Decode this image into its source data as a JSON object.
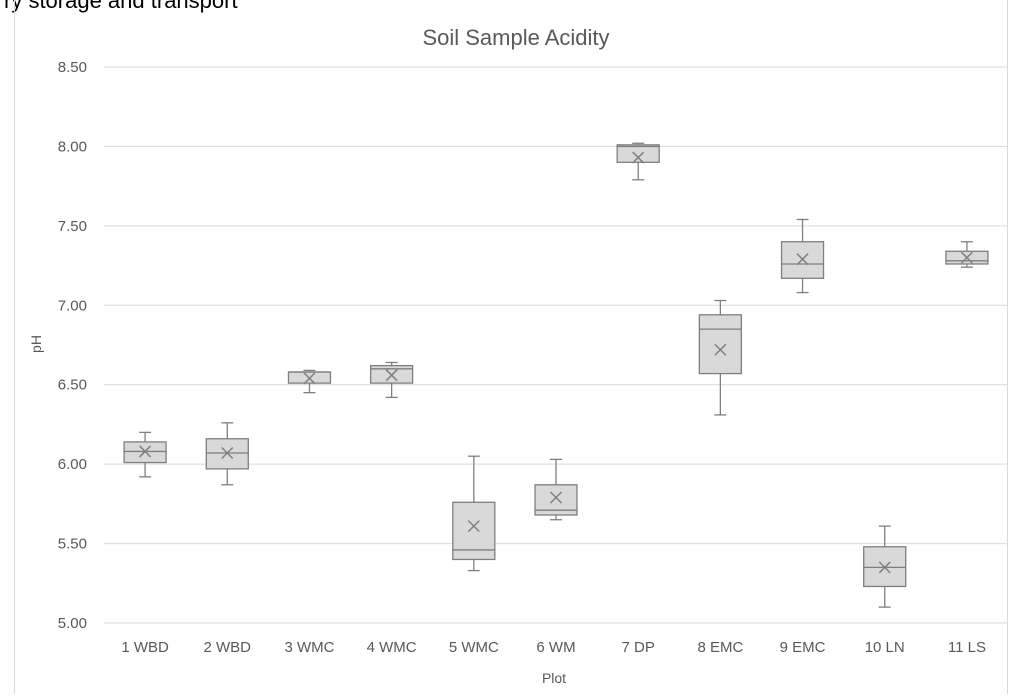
{
  "header_text": "ry storage and transport",
  "chart_data": {
    "type": "box",
    "title": "Soil Sample Acidity",
    "xlabel": "Plot",
    "ylabel": "pH",
    "ylim": [
      5.0,
      8.5
    ],
    "yticks": [
      "5.00",
      "5.50",
      "6.00",
      "6.50",
      "7.00",
      "7.50",
      "8.00",
      "8.50"
    ],
    "grid": true,
    "categories": [
      "1 WBD",
      "2 WBD",
      "3 WMC",
      "4 WMC",
      "5 WMC",
      "6 WM",
      "7 DP",
      "8 EMC",
      "9 EMC",
      "10 LN",
      "11 LS"
    ],
    "boxes": [
      {
        "min": 5.92,
        "q1": 6.01,
        "median": 6.08,
        "q3": 6.14,
        "max": 6.2,
        "mean": 6.08
      },
      {
        "min": 5.87,
        "q1": 5.97,
        "median": 6.07,
        "q3": 6.16,
        "max": 6.26,
        "mean": 6.07
      },
      {
        "min": 6.45,
        "q1": 6.51,
        "median": 6.58,
        "q3": 6.58,
        "max": 6.59,
        "mean": 6.54
      },
      {
        "min": 6.42,
        "q1": 6.51,
        "median": 6.6,
        "q3": 6.62,
        "max": 6.64,
        "mean": 6.56
      },
      {
        "min": 5.33,
        "q1": 5.4,
        "median": 5.46,
        "q3": 5.76,
        "max": 6.05,
        "mean": 5.61
      },
      {
        "min": 5.65,
        "q1": 5.68,
        "median": 5.71,
        "q3": 5.87,
        "max": 6.03,
        "mean": 5.79
      },
      {
        "min": 7.79,
        "q1": 7.9,
        "median": 8.0,
        "q3": 8.01,
        "max": 8.02,
        "mean": 7.93
      },
      {
        "min": 6.31,
        "q1": 6.57,
        "median": 6.85,
        "q3": 6.94,
        "max": 7.03,
        "mean": 6.72
      },
      {
        "min": 7.08,
        "q1": 7.17,
        "median": 7.26,
        "q3": 7.4,
        "max": 7.54,
        "mean": 7.29
      },
      {
        "min": 5.1,
        "q1": 5.23,
        "median": 5.35,
        "q3": 5.48,
        "max": 5.61,
        "mean": 5.35
      },
      {
        "min": 7.24,
        "q1": 7.26,
        "median": 7.28,
        "q3": 7.34,
        "max": 7.4,
        "mean": 7.3
      }
    ],
    "colors": {
      "box_fill": "#d9d9d9",
      "box_stroke": "#7f7f7f",
      "grid": "#d9d9d9",
      "text": "#595959"
    }
  }
}
